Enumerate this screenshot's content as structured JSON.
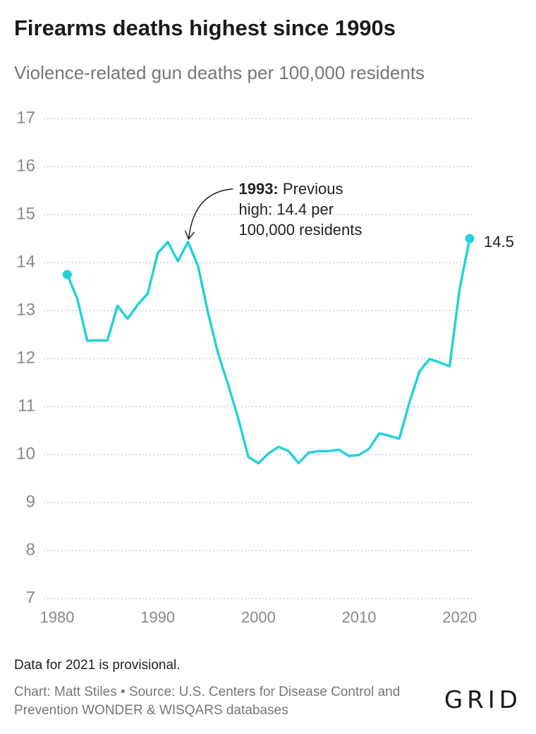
{
  "header": {
    "title": "Firearms deaths highest since 1990s",
    "subtitle": "Violence-related gun deaths per 100,000 residents"
  },
  "footer": {
    "note": "Data for 2021 is provisional.",
    "source": "Chart: Matt Stiles • Source: U.S. Centers for Disease Control and Prevention WONDER & WISQARS databases",
    "logo": "GRID"
  },
  "chart_data": {
    "type": "line",
    "title": "Firearms deaths highest since 1990s",
    "subtitle": "Violence-related gun deaths per 100,000 residents",
    "xlabel": "",
    "ylabel": "",
    "xlim": [
      1980,
      2021
    ],
    "ylim": [
      7,
      17
    ],
    "x_ticks": [
      1980,
      1990,
      2000,
      2010,
      2020
    ],
    "x_tick_labels": [
      "1980",
      "1990",
      "2000",
      "2010",
      "2020"
    ],
    "y_ticks": [
      7,
      8,
      9,
      10,
      11,
      12,
      13,
      14,
      15,
      16,
      17
    ],
    "y_tick_labels": [
      "7",
      "8",
      "9",
      "10",
      "11",
      "12",
      "13",
      "14",
      "15",
      "16",
      "17"
    ],
    "grid": true,
    "line_color": "#23d2d9",
    "series": [
      {
        "x": [
          1981,
          1982,
          1983,
          1984,
          1985,
          1986,
          1987,
          1988,
          1989,
          1990,
          1991,
          1992,
          1993,
          1994,
          1995,
          1996,
          1997,
          1998,
          1999,
          2000,
          2001,
          2002,
          2003,
          2004,
          2005,
          2006,
          2007,
          2008,
          2009,
          2010,
          2011,
          2012,
          2013,
          2014,
          2015,
          2016,
          2017,
          2018,
          2019,
          2020,
          2021
        ],
        "values": [
          13.75,
          13.25,
          12.37,
          12.38,
          12.38,
          13.1,
          12.83,
          13.12,
          13.35,
          14.2,
          14.43,
          14.03,
          14.43,
          13.93,
          12.95,
          12.1,
          11.45,
          10.75,
          9.95,
          9.82,
          10.02,
          10.16,
          10.07,
          9.82,
          10.04,
          10.07,
          10.07,
          10.1,
          9.97,
          9.99,
          10.12,
          10.44,
          10.39,
          10.33,
          11.08,
          11.73,
          11.99,
          11.92,
          11.84,
          13.45,
          14.5
        ]
      }
    ],
    "end_label": "14.5",
    "annotation": {
      "x": 1993,
      "y": 14.43,
      "bold_text": "1993:",
      "lines": [
        "Previous",
        "high: 14.4 per",
        "100,000 residents"
      ]
    }
  }
}
